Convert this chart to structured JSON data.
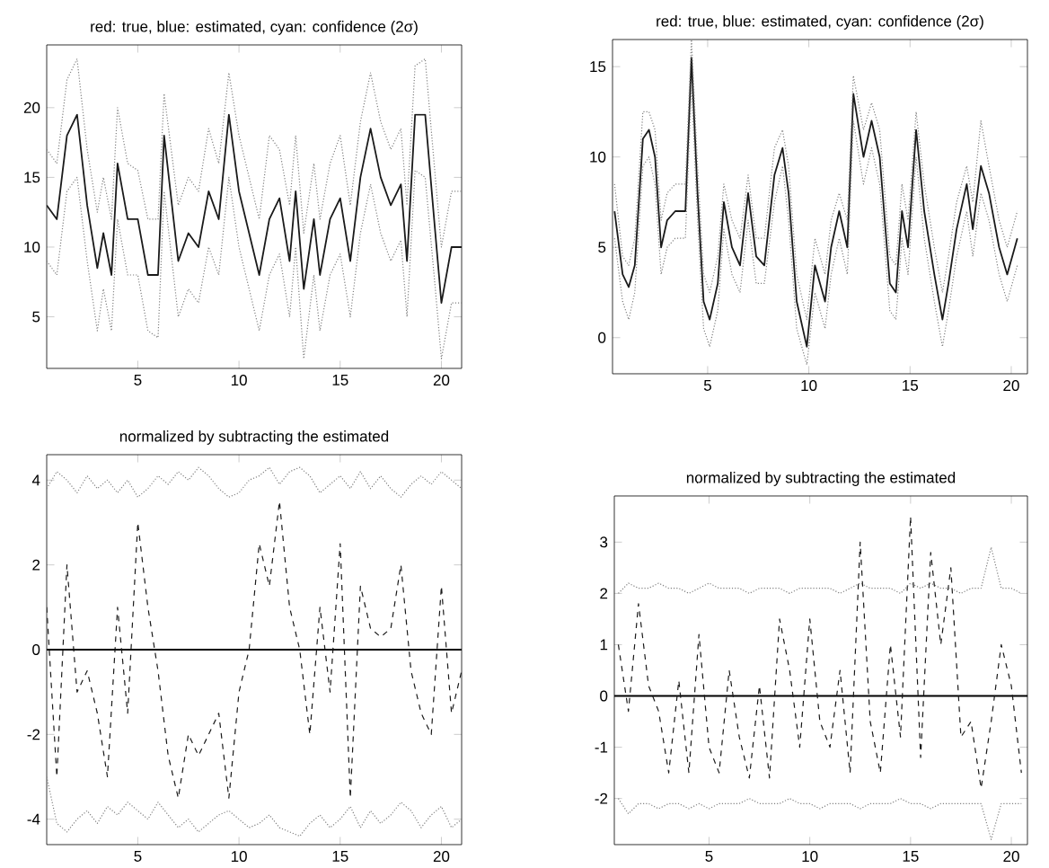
{
  "chart_data": [
    {
      "type": "line",
      "title": "red: true, blue: estimated, cyan: confidence (2σ)",
      "xlim": [
        0.5,
        21
      ],
      "ylim": [
        1.3,
        24.5
      ],
      "xticks": [
        5,
        10,
        15,
        20
      ],
      "yticks": [
        5,
        10,
        15,
        20
      ],
      "grid": false,
      "marker": "none",
      "series": [
        {
          "color": "#1a1a1a",
          "line_style": "solid",
          "x": [
            0.5,
            1,
            1.5,
            2,
            2.5,
            3,
            3.3,
            3.7,
            4,
            4.5,
            5,
            5.5,
            6,
            6.3,
            7,
            7.5,
            8,
            8.5,
            9,
            9.5,
            10,
            10.5,
            11,
            11.5,
            12,
            12.5,
            12.8,
            13.2,
            13.7,
            14,
            14.5,
            15,
            15.5,
            16,
            16.5,
            17,
            17.5,
            18,
            18.3,
            18.7,
            19.2,
            19.7,
            20,
            20.5,
            21
          ],
          "values": [
            13,
            12,
            18,
            19.5,
            13,
            8.5,
            11,
            8,
            16,
            12,
            12,
            8,
            8,
            18,
            9,
            11,
            10,
            14,
            12,
            19.5,
            14,
            11,
            8,
            12,
            13.5,
            9,
            14,
            7,
            12,
            8,
            12,
            13.5,
            9,
            15,
            18.5,
            15,
            13,
            14.5,
            9,
            19.5,
            19.5,
            11,
            6,
            10,
            10
          ]
        },
        {
          "color": "#808080",
          "line_style": "dotted",
          "x": [
            0.5,
            1,
            1.5,
            2,
            2.5,
            3,
            3.3,
            3.7,
            4,
            4.5,
            5,
            5.5,
            6,
            6.3,
            7,
            7.5,
            8,
            8.5,
            9,
            9.5,
            10,
            10.5,
            11,
            11.5,
            12,
            12.5,
            12.8,
            13.2,
            13.7,
            14,
            14.5,
            15,
            15.5,
            16,
            16.5,
            17,
            17.5,
            18,
            18.3,
            18.7,
            19.2,
            19.7,
            20,
            20.5,
            21
          ],
          "values": [
            17,
            16,
            22,
            23.5,
            17,
            12.5,
            15,
            12,
            20,
            16,
            15.5,
            12,
            12,
            21,
            13,
            15,
            14,
            18.5,
            16,
            22.5,
            18,
            15,
            12,
            18,
            17,
            13,
            18,
            11,
            16,
            12,
            16,
            18,
            13,
            19,
            22.5,
            19,
            17,
            18.5,
            13,
            23,
            23.5,
            15,
            10,
            14,
            14
          ]
        },
        {
          "color": "#808080",
          "line_style": "dotted",
          "x": [
            0.5,
            1,
            1.5,
            2,
            2.5,
            3,
            3.3,
            3.7,
            4,
            4.5,
            5,
            5.5,
            6,
            6.3,
            7,
            7.5,
            8,
            8.5,
            9,
            9.5,
            10,
            10.5,
            11,
            11.5,
            12,
            12.5,
            12.8,
            13.2,
            13.7,
            14,
            14.5,
            15,
            15.5,
            16,
            16.5,
            17,
            17.5,
            18,
            18.3,
            18.7,
            19.2,
            19.7,
            20,
            20.5,
            21
          ],
          "values": [
            9,
            8,
            14,
            15,
            9,
            4,
            7,
            4,
            12,
            8,
            8,
            4,
            3.5,
            14,
            5,
            7,
            6,
            10,
            8,
            15,
            10,
            7,
            4,
            8,
            9.5,
            5,
            10,
            2,
            8,
            4,
            8,
            9.5,
            5,
            11,
            14.5,
            11,
            9,
            10.5,
            5,
            15.5,
            15,
            7,
            2,
            6,
            6
          ]
        }
      ]
    },
    {
      "type": "line",
      "title": "red: true, blue: estimated, cyan: confidence (2σ)",
      "xlim": [
        0.3,
        20.8
      ],
      "ylim": [
        -2,
        16.5
      ],
      "xticks": [
        5,
        10,
        15,
        20
      ],
      "yticks": [
        0,
        5,
        10,
        15
      ],
      "grid": false,
      "marker": "none",
      "series": [
        {
          "color": "#1a1a1a",
          "line_style": "solid",
          "x": [
            0.4,
            0.8,
            1.1,
            1.4,
            1.8,
            2.1,
            2.4,
            2.7,
            3.0,
            3.4,
            3.9,
            4.2,
            4.5,
            4.8,
            5.1,
            5.5,
            5.8,
            6.2,
            6.6,
            7.0,
            7.4,
            7.8,
            8.3,
            8.7,
            9.0,
            9.4,
            9.9,
            10.3,
            10.8,
            11.1,
            11.5,
            11.9,
            12.2,
            12.7,
            13.1,
            13.5,
            14.0,
            14.3,
            14.6,
            14.9,
            15.3,
            15.7,
            16.2,
            16.6,
            16.9,
            17.3,
            17.8,
            18.1,
            18.5,
            18.9,
            19.4,
            19.8,
            20.3
          ],
          "values": [
            7,
            3.5,
            2.8,
            4,
            11,
            11.5,
            10,
            5,
            6.5,
            7,
            7,
            15.5,
            8,
            2,
            1,
            3,
            7.5,
            5,
            4,
            8,
            4.5,
            4,
            9,
            10.5,
            8,
            2,
            -0.5,
            4,
            2,
            5,
            7,
            5,
            13.5,
            10,
            12,
            10,
            3,
            2.5,
            7,
            5,
            11.5,
            7,
            3.5,
            1,
            3,
            6,
            8.5,
            6,
            9.5,
            8,
            5,
            3.5,
            5.5
          ]
        },
        {
          "color": "#808080",
          "line_style": "dotted",
          "x": [
            0.4,
            0.8,
            1.1,
            1.4,
            1.8,
            2.1,
            2.4,
            2.7,
            3.0,
            3.4,
            3.9,
            4.2,
            4.5,
            4.8,
            5.1,
            5.5,
            5.8,
            6.2,
            6.6,
            7.0,
            7.4,
            7.8,
            8.3,
            8.7,
            9.0,
            9.4,
            9.9,
            10.3,
            10.8,
            11.1,
            11.5,
            11.9,
            12.2,
            12.7,
            13.1,
            13.5,
            14.0,
            14.3,
            14.6,
            14.9,
            15.3,
            15.7,
            16.2,
            16.6,
            16.9,
            17.3,
            17.8,
            18.1,
            18.5,
            18.9,
            19.4,
            19.8,
            20.3
          ],
          "values": [
            8.5,
            4.5,
            4,
            5.5,
            12.5,
            12.5,
            11.5,
            6.5,
            8,
            8.5,
            8.5,
            16.5,
            9.5,
            3.5,
            2.5,
            4.5,
            8.5,
            6.5,
            5.5,
            9,
            5.5,
            5.5,
            10.5,
            11.5,
            9.5,
            3.5,
            1,
            5.5,
            3.5,
            6.5,
            8,
            6.5,
            14.5,
            11.5,
            13,
            11.5,
            4.5,
            4,
            8.5,
            6.5,
            12.5,
            8.5,
            5,
            2.5,
            4.5,
            7.5,
            9.5,
            7.5,
            12,
            9.5,
            6.5,
            5,
            7
          ]
        },
        {
          "color": "#808080",
          "line_style": "dotted",
          "x": [
            0.4,
            0.8,
            1.1,
            1.4,
            1.8,
            2.1,
            2.4,
            2.7,
            3.0,
            3.4,
            3.9,
            4.2,
            4.5,
            4.8,
            5.1,
            5.5,
            5.8,
            6.2,
            6.6,
            7.0,
            7.4,
            7.8,
            8.3,
            8.7,
            9.0,
            9.4,
            9.9,
            10.3,
            10.8,
            11.1,
            11.5,
            11.9,
            12.2,
            12.7,
            13.1,
            13.5,
            14.0,
            14.3,
            14.6,
            14.9,
            15.3,
            15.7,
            16.2,
            16.6,
            16.9,
            17.3,
            17.8,
            18.1,
            18.5,
            18.9,
            19.4,
            19.8,
            20.3
          ],
          "values": [
            5.5,
            2,
            1,
            2.5,
            9.5,
            10,
            8.5,
            3.5,
            5,
            5.5,
            5.5,
            14,
            6.5,
            0.5,
            -0.5,
            1.5,
            6,
            3.5,
            2.5,
            6.5,
            3,
            3,
            7.5,
            9.5,
            6.5,
            0.5,
            -1.5,
            2.5,
            0.5,
            3.5,
            5.5,
            3.5,
            12,
            8.5,
            10.5,
            8.5,
            1.5,
            1,
            5.5,
            3.5,
            10,
            5.5,
            2,
            -0.5,
            1.5,
            4.5,
            7,
            4.5,
            8,
            6.5,
            3.5,
            2,
            4
          ]
        }
      ]
    },
    {
      "type": "line",
      "title": "normalized by subtracting the estimated",
      "xlim": [
        0.5,
        21
      ],
      "ylim": [
        -4.6,
        4.6
      ],
      "xticks": [
        5,
        10,
        15,
        20
      ],
      "yticks": [
        -4,
        -2,
        0,
        2,
        4
      ],
      "grid": false,
      "marker": "none",
      "x": [
        0.5,
        1,
        1.5,
        2,
        2.5,
        3,
        3.5,
        4,
        4.5,
        5,
        5.5,
        6,
        6.5,
        7,
        7.5,
        8,
        8.5,
        9,
        9.5,
        10,
        10.5,
        11,
        11.5,
        12,
        12.5,
        13,
        13.5,
        14,
        14.5,
        15,
        15.5,
        16,
        16.5,
        17,
        17.5,
        18,
        18.5,
        19,
        19.5,
        20,
        20.5,
        21
      ],
      "ref_lines": [
        {
          "axis": "y",
          "value": 0,
          "color": "#000000"
        }
      ],
      "series": [
        {
          "color": "#1a1a1a",
          "line_style": "dashed",
          "values": [
            1,
            -3,
            2,
            -1,
            -0.5,
            -1.5,
            -3,
            1,
            -1.5,
            3,
            1,
            -0.5,
            -2.5,
            -3.5,
            -2,
            -2.5,
            -2,
            -1.5,
            -3.5,
            -1,
            0,
            2.5,
            1.5,
            3.5,
            1,
            0,
            -2,
            1,
            -1,
            2.5,
            -3.5,
            1.5,
            0.5,
            0.3,
            0.5,
            2,
            -0.5,
            -1.5,
            -2,
            1.5,
            -1.5,
            -0.5
          ]
        },
        {
          "color": "#808080",
          "line_style": "dotted",
          "values": [
            3.8,
            4.2,
            4.0,
            3.7,
            4.1,
            3.8,
            4.0,
            3.7,
            4.0,
            3.6,
            3.8,
            4.1,
            3.9,
            4.2,
            4.0,
            4.3,
            4.1,
            3.8,
            3.6,
            3.7,
            4.0,
            4.1,
            4.3,
            3.9,
            4.2,
            4.3,
            4.1,
            3.7,
            3.9,
            4.1,
            3.8,
            4.2,
            3.8,
            4.1,
            3.8,
            3.6,
            3.9,
            4.1,
            3.9,
            4.2,
            4.0,
            3.8
          ]
        },
        {
          "color": "#808080",
          "line_style": "dotted",
          "values": [
            -3.0,
            -4.1,
            -4.3,
            -4.0,
            -3.8,
            -4.1,
            -3.7,
            -3.9,
            -3.6,
            -3.8,
            -4.0,
            -3.6,
            -3.9,
            -4.2,
            -4.0,
            -4.3,
            -4.1,
            -3.9,
            -3.8,
            -4.0,
            -4.2,
            -4.1,
            -3.9,
            -4.2,
            -4.3,
            -4.4,
            -4.1,
            -3.9,
            -4.2,
            -4.0,
            -3.7,
            -4.2,
            -3.8,
            -4.1,
            -3.9,
            -3.6,
            -3.8,
            -4.2,
            -3.9,
            -3.7,
            -4.2,
            -4.0
          ]
        }
      ]
    },
    {
      "type": "line",
      "title": "normalized by subtracting the estimated",
      "xlim": [
        0.3,
        20.8
      ],
      "ylim": [
        -2.9,
        3.9
      ],
      "xticks": [
        5,
        10,
        15,
        20
      ],
      "yticks": [
        -2,
        -1,
        0,
        1,
        2,
        3
      ],
      "grid": false,
      "marker": "none",
      "x": [
        0.5,
        1,
        1.5,
        2,
        2.5,
        3,
        3.5,
        4,
        4.5,
        5,
        5.5,
        6,
        6.5,
        7,
        7.5,
        8,
        8.5,
        9,
        9.5,
        10,
        10.5,
        11,
        11.5,
        12,
        12.5,
        13,
        13.5,
        14,
        14.5,
        15,
        15.5,
        16,
        16.5,
        17,
        17.5,
        18,
        18.5,
        19,
        19.5,
        20,
        20.5
      ],
      "ref_lines": [
        {
          "axis": "y",
          "value": 0,
          "color": "#000000"
        }
      ],
      "series": [
        {
          "color": "#1a1a1a",
          "line_style": "dashed",
          "values": [
            1,
            -0.3,
            1.8,
            0.2,
            -0.3,
            -1.5,
            0.3,
            -1.5,
            1.2,
            -1,
            -1.5,
            0.5,
            -0.8,
            -1.6,
            0.2,
            -1.6,
            1.5,
            0.5,
            -1,
            1.5,
            -0.5,
            -1,
            0.5,
            -1.5,
            3,
            -0.5,
            -1.5,
            1,
            -0.8,
            3.5,
            -1.2,
            2.8,
            1,
            2.5,
            -0.8,
            -0.5,
            -1.8,
            -0.5,
            1,
            0.2,
            -1.5
          ]
        },
        {
          "color": "#808080",
          "line_style": "dotted",
          "values": [
            2.0,
            2.2,
            2.1,
            2.1,
            2.2,
            2.1,
            2.1,
            2.0,
            2.1,
            2.2,
            2.1,
            2.1,
            2.1,
            2.0,
            2.1,
            2.1,
            2.1,
            2.0,
            2.1,
            2.1,
            2.1,
            2.1,
            2.0,
            2.1,
            2.2,
            2.1,
            2.1,
            2.1,
            2.0,
            2.2,
            2.1,
            2.2,
            2.1,
            2.1,
            2.0,
            2.1,
            2.1,
            2.9,
            2.1,
            2.1,
            2.0
          ]
        },
        {
          "color": "#808080",
          "line_style": "dotted",
          "values": [
            -2.0,
            -2.3,
            -2.1,
            -2.1,
            -2.2,
            -2.1,
            -2.1,
            -2.2,
            -2.1,
            -2.2,
            -2.1,
            -2.1,
            -2.1,
            -2.0,
            -2.1,
            -2.1,
            -2.1,
            -2.0,
            -2.1,
            -2.1,
            -2.2,
            -2.1,
            -2.1,
            -2.1,
            -2.2,
            -2.1,
            -2.1,
            -2.1,
            -2.0,
            -2.1,
            -2.1,
            -2.2,
            -2.1,
            -2.1,
            -2.1,
            -2.1,
            -2.1,
            -2.8,
            -2.1,
            -2.1,
            -2.1
          ]
        }
      ]
    }
  ]
}
